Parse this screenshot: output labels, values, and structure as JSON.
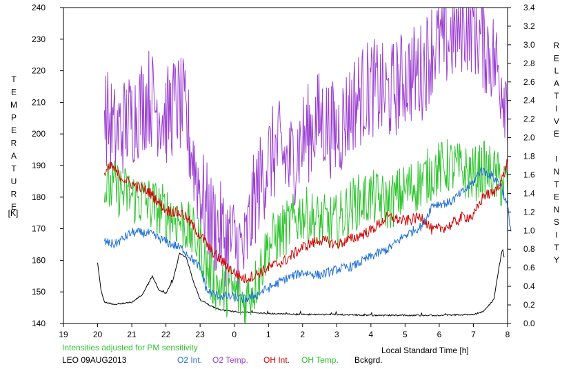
{
  "chart_data": {
    "type": "line",
    "title": "",
    "note": "Intensities adjusted for PM sensitivity",
    "station_label": "LEO 09AUG2013",
    "xlabel": "Local Standard Time [h]",
    "ylabel_left": "TEMPERATURE [K]",
    "ylabel_right": "RELATIVE INTENSITY",
    "ylabel_left_unit": "[K]",
    "x_ticks": [
      "19",
      "20",
      "21",
      "22",
      "23",
      "0",
      "1",
      "2",
      "3",
      "4",
      "5",
      "6",
      "7",
      "8"
    ],
    "xlim_elapsed_hours_from_19": [
      0,
      13
    ],
    "y_left_ticks": [
      140,
      150,
      160,
      170,
      180,
      190,
      200,
      210,
      220,
      230,
      240
    ],
    "ylim_left": [
      140,
      240
    ],
    "y_right_ticks": [
      "0.0",
      "0.2",
      "0.4",
      "0.6",
      "0.8",
      "1.0",
      "1.2",
      "1.4",
      "1.6",
      "1.8",
      "2.0",
      "2.2",
      "2.4",
      "2.6",
      "2.8",
      "3.0",
      "3.2",
      "3.4"
    ],
    "ylim_right": [
      0,
      3.4
    ],
    "grid": false,
    "legend_placement": "bottom",
    "series": [
      {
        "name": "O2 Int.",
        "axis": "right",
        "color": "#1f6fd6",
        "points": [
          [
            20.2,
            0.88
          ],
          [
            20.5,
            0.85
          ],
          [
            21.0,
            0.98
          ],
          [
            21.5,
            0.97
          ],
          [
            22.0,
            0.88
          ],
          [
            22.5,
            0.8
          ],
          [
            23.0,
            0.6
          ],
          [
            23.2,
            0.35
          ],
          [
            23.5,
            0.3
          ],
          [
            24.0,
            0.28
          ],
          [
            24.3,
            0.26
          ],
          [
            24.6,
            0.3
          ],
          [
            25.0,
            0.38
          ],
          [
            25.5,
            0.48
          ],
          [
            26.0,
            0.55
          ],
          [
            26.5,
            0.52
          ],
          [
            27.0,
            0.58
          ],
          [
            27.5,
            0.62
          ],
          [
            28.0,
            0.72
          ],
          [
            28.5,
            0.8
          ],
          [
            29.0,
            0.95
          ],
          [
            29.5,
            1.05
          ],
          [
            29.8,
            1.28
          ],
          [
            30.3,
            1.3
          ],
          [
            30.8,
            1.45
          ],
          [
            31.0,
            1.52
          ],
          [
            31.2,
            1.65
          ],
          [
            31.5,
            1.6
          ],
          [
            31.8,
            1.5
          ],
          [
            32.0,
            1.25
          ],
          [
            32.1,
            1.0
          ]
        ]
      },
      {
        "name": "O2 Temp.",
        "axis": "left",
        "color": "#9b3fd1",
        "points": [
          [
            20.2,
            207
          ],
          [
            20.5,
            200
          ],
          [
            21.0,
            205
          ],
          [
            21.5,
            212
          ],
          [
            22.0,
            205
          ],
          [
            22.3,
            210
          ],
          [
            22.5,
            208
          ],
          [
            23.0,
            182
          ],
          [
            23.3,
            172
          ],
          [
            23.5,
            170
          ],
          [
            24.0,
            165
          ],
          [
            24.3,
            162
          ],
          [
            24.6,
            180
          ],
          [
            25.0,
            192
          ],
          [
            25.3,
            195
          ],
          [
            25.6,
            190
          ],
          [
            26.0,
            198
          ],
          [
            26.5,
            205
          ],
          [
            27.0,
            200
          ],
          [
            27.5,
            210
          ],
          [
            28.0,
            215
          ],
          [
            28.5,
            212
          ],
          [
            29.0,
            218
          ],
          [
            29.5,
            220
          ],
          [
            29.8,
            228
          ],
          [
            30.3,
            230
          ],
          [
            30.7,
            235
          ],
          [
            31.0,
            235
          ],
          [
            31.2,
            230
          ],
          [
            31.5,
            226
          ],
          [
            31.8,
            218
          ],
          [
            32.0,
            212
          ]
        ]
      },
      {
        "name": "OH Int.",
        "axis": "right",
        "color": "#d40000",
        "points": [
          [
            20.2,
            1.6
          ],
          [
            20.4,
            1.7
          ],
          [
            20.6,
            1.6
          ],
          [
            21.0,
            1.5
          ],
          [
            21.5,
            1.42
          ],
          [
            22.0,
            1.22
          ],
          [
            22.5,
            1.18
          ],
          [
            23.0,
            0.95
          ],
          [
            23.3,
            0.8
          ],
          [
            23.5,
            0.72
          ],
          [
            24.0,
            0.55
          ],
          [
            24.3,
            0.48
          ],
          [
            24.6,
            0.52
          ],
          [
            25.0,
            0.6
          ],
          [
            25.5,
            0.68
          ],
          [
            26.0,
            0.82
          ],
          [
            26.5,
            0.9
          ],
          [
            27.0,
            0.85
          ],
          [
            27.5,
            0.92
          ],
          [
            28.0,
            1.0
          ],
          [
            28.5,
            1.15
          ],
          [
            29.0,
            1.1
          ],
          [
            29.5,
            1.15
          ],
          [
            29.8,
            1.0
          ],
          [
            30.3,
            1.05
          ],
          [
            30.7,
            1.15
          ],
          [
            31.0,
            1.15
          ],
          [
            31.3,
            1.38
          ],
          [
            31.6,
            1.4
          ],
          [
            31.9,
            1.6
          ],
          [
            32.0,
            1.75
          ]
        ]
      },
      {
        "name": "OH Temp.",
        "axis": "left",
        "color": "#2ec42e",
        "points": [
          [
            20.2,
            182
          ],
          [
            20.5,
            183
          ],
          [
            21.0,
            180
          ],
          [
            21.5,
            178
          ],
          [
            22.0,
            175
          ],
          [
            22.5,
            172
          ],
          [
            23.0,
            165
          ],
          [
            23.3,
            155
          ],
          [
            23.5,
            152
          ],
          [
            24.0,
            150
          ],
          [
            24.3,
            147
          ],
          [
            24.6,
            152
          ],
          [
            25.0,
            165
          ],
          [
            25.5,
            170
          ],
          [
            26.0,
            175
          ],
          [
            26.5,
            172
          ],
          [
            27.0,
            172
          ],
          [
            27.5,
            178
          ],
          [
            28.0,
            180
          ],
          [
            28.5,
            178
          ],
          [
            29.0,
            182
          ],
          [
            29.5,
            185
          ],
          [
            29.8,
            188
          ],
          [
            30.3,
            190
          ],
          [
            30.7,
            188
          ],
          [
            31.0,
            187
          ],
          [
            31.3,
            189
          ],
          [
            31.6,
            187
          ],
          [
            31.9,
            184
          ],
          [
            32.0,
            183
          ]
        ]
      },
      {
        "name": "Bckgrd.",
        "axis": "right",
        "color": "#000000",
        "points": [
          [
            20.0,
            0.65
          ],
          [
            20.1,
            0.35
          ],
          [
            20.2,
            0.22
          ],
          [
            20.5,
            0.2
          ],
          [
            21.0,
            0.22
          ],
          [
            21.3,
            0.3
          ],
          [
            21.6,
            0.5
          ],
          [
            21.8,
            0.35
          ],
          [
            22.0,
            0.32
          ],
          [
            22.2,
            0.45
          ],
          [
            22.4,
            0.75
          ],
          [
            22.6,
            0.7
          ],
          [
            22.8,
            0.45
          ],
          [
            23.0,
            0.25
          ],
          [
            23.3,
            0.18
          ],
          [
            23.6,
            0.14
          ],
          [
            24.0,
            0.12
          ],
          [
            25.0,
            0.1
          ],
          [
            26.0,
            0.09
          ],
          [
            27.0,
            0.09
          ],
          [
            28.0,
            0.08
          ],
          [
            29.0,
            0.08
          ],
          [
            30.0,
            0.08
          ],
          [
            31.0,
            0.09
          ],
          [
            31.3,
            0.12
          ],
          [
            31.6,
            0.25
          ],
          [
            31.75,
            0.6
          ],
          [
            31.85,
            0.8
          ],
          [
            31.9,
            0.7
          ]
        ]
      }
    ]
  },
  "legend": {
    "o2_int": "O2 Int.",
    "o2_temp": "O2 Temp.",
    "oh_int": "OH Int.",
    "oh_temp": "OH Temp.",
    "bckgrd": "Bckgrd."
  },
  "colors": {
    "o2_int": "#1f6fd6",
    "o2_temp": "#9b3fd1",
    "oh_int": "#d40000",
    "oh_temp": "#2ec42e",
    "bckgrd": "#000000",
    "note": "#2ec42e"
  }
}
